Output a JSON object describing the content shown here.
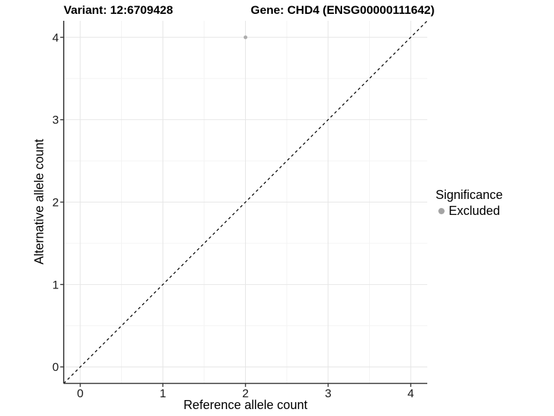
{
  "chart_data": {
    "type": "scatter",
    "title_left": "Variant: 12:6709428",
    "title_right": "Gene: CHD4 (ENSG00000111642)",
    "xlabel": "Reference allele count",
    "ylabel": "Alternative allele count",
    "xlim": [
      -0.2,
      4.2
    ],
    "ylim": [
      -0.2,
      4.2
    ],
    "xticks": [
      0,
      1,
      2,
      3,
      4
    ],
    "yticks": [
      0,
      1,
      2,
      3,
      4
    ],
    "xticks_minor": [
      0.5,
      1.5,
      2.5,
      3.5
    ],
    "yticks_minor": [
      0.5,
      1.5,
      2.5,
      3.5
    ],
    "grid": "major and minor gridlines on white panel",
    "identity_line": {
      "slope": 1,
      "intercept": 0,
      "style": "dashed",
      "color": "#000000"
    },
    "series": [
      {
        "name": "Excluded",
        "color": "#adadad",
        "points": [
          [
            2,
            4
          ]
        ]
      }
    ],
    "legend": {
      "title": "Significance",
      "position": "right",
      "items": [
        {
          "label": "Excluded",
          "color": "#a4a4a4",
          "marker": "circle"
        }
      ]
    }
  },
  "styles": {
    "background": "#ffffff",
    "grid_major_color": "#e6e6e6",
    "grid_minor_color": "#f3f3f3",
    "axis_color": "#333333",
    "tick_label_color": "#1a1a1a",
    "text_color": "#000000"
  }
}
